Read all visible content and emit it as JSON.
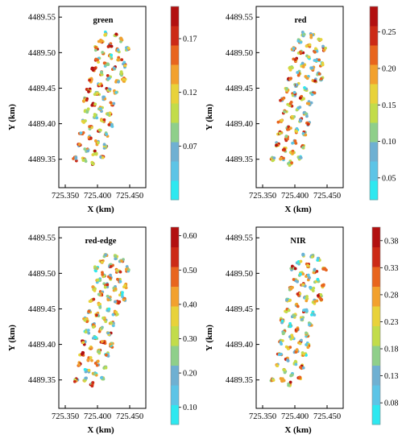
{
  "figure": {
    "colorscale": [
      "#2ee8f0",
      "#5dc4e6",
      "#6fb0d2",
      "#8fcf8a",
      "#c2dc4a",
      "#e8d23a",
      "#f2a12e",
      "#e8651e",
      "#cc2a16",
      "#b21010"
    ],
    "plot_bg": "#ffffff",
    "frame_color": "#000000"
  },
  "chart_data": [
    {
      "type": "scatter",
      "title": "green",
      "xlabel": "X (km)",
      "ylabel": "Y (km)",
      "x_ticks": [
        "725.350",
        "725.400",
        "725.450"
      ],
      "y_ticks": [
        "4489.55",
        "4489.50",
        "4489.45",
        "4489.40",
        "4489.35"
      ],
      "xlim": [
        725.34,
        725.475
      ],
      "ylim": [
        4489.31,
        4489.565
      ],
      "colorbar_ticks": [
        "0.17",
        "0.12",
        "0.07"
      ],
      "colorbar_values": [
        0.17,
        0.12,
        0.07
      ],
      "colorbar_range": [
        0.02,
        0.2
      ]
    },
    {
      "type": "scatter",
      "title": "red",
      "xlabel": "X (km)",
      "ylabel": "Y (km)",
      "x_ticks": [
        "725.350",
        "725.400",
        "725.450"
      ],
      "y_ticks": [
        "4489.55",
        "4489.50",
        "4489.45",
        "4489.40",
        "4489.35"
      ],
      "xlim": [
        725.34,
        725.475
      ],
      "ylim": [
        4489.31,
        4489.565
      ],
      "colorbar_ticks": [
        "0.25",
        "0.20",
        "0.15",
        "0.10",
        "0.05"
      ],
      "colorbar_values": [
        0.25,
        0.2,
        0.15,
        0.1,
        0.05
      ],
      "colorbar_range": [
        0.02,
        0.285
      ]
    },
    {
      "type": "scatter",
      "title": "red-edge",
      "xlabel": "X (km)",
      "ylabel": "Y (km)",
      "x_ticks": [
        "725.350",
        "725.400",
        "725.450"
      ],
      "y_ticks": [
        "4489.55",
        "4489.50",
        "4489.45",
        "4489.40",
        "4489.35"
      ],
      "xlim": [
        725.34,
        725.475
      ],
      "ylim": [
        4489.31,
        4489.565
      ],
      "colorbar_ticks": [
        "0.60",
        "0.50",
        "0.40",
        "0.30",
        "0.20",
        "0.10"
      ],
      "colorbar_values": [
        0.6,
        0.5,
        0.4,
        0.3,
        0.2,
        0.1
      ],
      "colorbar_range": [
        0.05,
        0.625
      ]
    },
    {
      "type": "scatter",
      "title": "NIR",
      "xlabel": "X (km)",
      "ylabel": "Y (km)",
      "x_ticks": [
        "725.350",
        "725.400",
        "725.450"
      ],
      "y_ticks": [
        "4489.55",
        "4489.50",
        "4489.45",
        "4489.40",
        "4489.35"
      ],
      "xlim": [
        725.34,
        725.475
      ],
      "ylim": [
        4489.31,
        4489.565
      ],
      "colorbar_ticks": [
        "0.38",
        "0.33",
        "0.28",
        "0.23",
        "0.18",
        "0.13",
        "0.08"
      ],
      "colorbar_values": [
        0.38,
        0.33,
        0.28,
        0.23,
        0.18,
        0.13,
        0.08
      ],
      "colorbar_range": [
        0.04,
        0.405
      ]
    }
  ]
}
